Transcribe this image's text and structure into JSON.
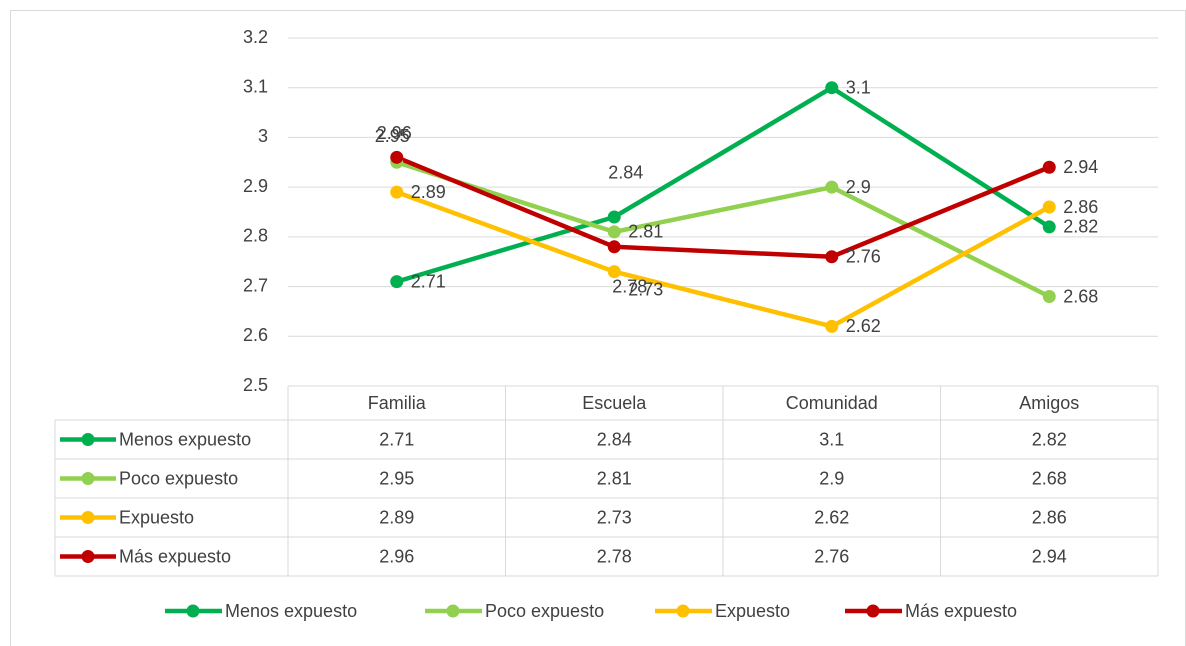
{
  "chart_data": {
    "type": "line",
    "categories": [
      "Familia",
      "Escuela",
      "Comunidad",
      "Amigos"
    ],
    "series": [
      {
        "name": "Menos expuesto",
        "color": "#00b050",
        "values": [
          2.71,
          2.84,
          3.1,
          2.82
        ]
      },
      {
        "name": "Poco expuesto",
        "color": "#92d050",
        "values": [
          2.95,
          2.81,
          2.9,
          2.68
        ]
      },
      {
        "name": "Expuesto",
        "color": "#ffc000",
        "values": [
          2.89,
          2.73,
          2.62,
          2.86
        ]
      },
      {
        "name": "Más expuesto",
        "color": "#c00000",
        "values": [
          2.96,
          2.78,
          2.76,
          2.94
        ]
      }
    ],
    "ylim": [
      2.5,
      3.2
    ],
    "yticks": [
      2.5,
      2.6,
      2.7,
      2.8,
      2.9,
      3,
      3.1,
      3.2
    ],
    "grid": true,
    "data_table": true,
    "legend": "bottom"
  }
}
